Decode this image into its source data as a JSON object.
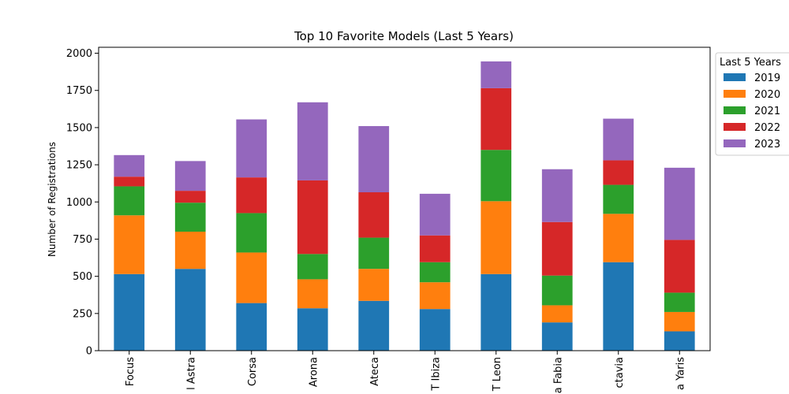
{
  "chart_data": {
    "type": "bar",
    "stacked": true,
    "title": "Top 10 Favorite Models (Last 5 Years)",
    "xlabel": "",
    "ylabel": "Number of Registrations",
    "ylim": [
      0,
      2040
    ],
    "yticks": [
      0,
      250,
      500,
      750,
      1000,
      1250,
      1500,
      1750,
      2000
    ],
    "categories": [
      "Focus",
      "l Astra",
      "Corsa",
      "Arona",
      "Ateca",
      "T Ibiza",
      "T Leon",
      "a Fabia",
      "ctavia",
      "a Yaris"
    ],
    "legend": {
      "title": "Last 5 Years",
      "placement": "outside-right"
    },
    "grid": false,
    "series": [
      {
        "name": "2019",
        "color": "#1f77b4",
        "values": [
          515,
          550,
          320,
          285,
          335,
          280,
          515,
          190,
          595,
          130
        ]
      },
      {
        "name": "2020",
        "color": "#ff7f0e",
        "values": [
          395,
          250,
          340,
          195,
          215,
          180,
          490,
          115,
          325,
          130
        ]
      },
      {
        "name": "2021",
        "color": "#2ca02c",
        "values": [
          195,
          195,
          265,
          170,
          210,
          135,
          345,
          200,
          195,
          130
        ]
      },
      {
        "name": "2022",
        "color": "#d62728",
        "values": [
          65,
          80,
          240,
          495,
          305,
          180,
          415,
          360,
          165,
          355
        ]
      },
      {
        "name": "2023",
        "color": "#9467bd",
        "values": [
          145,
          200,
          390,
          525,
          445,
          280,
          180,
          355,
          280,
          485
        ]
      }
    ]
  }
}
